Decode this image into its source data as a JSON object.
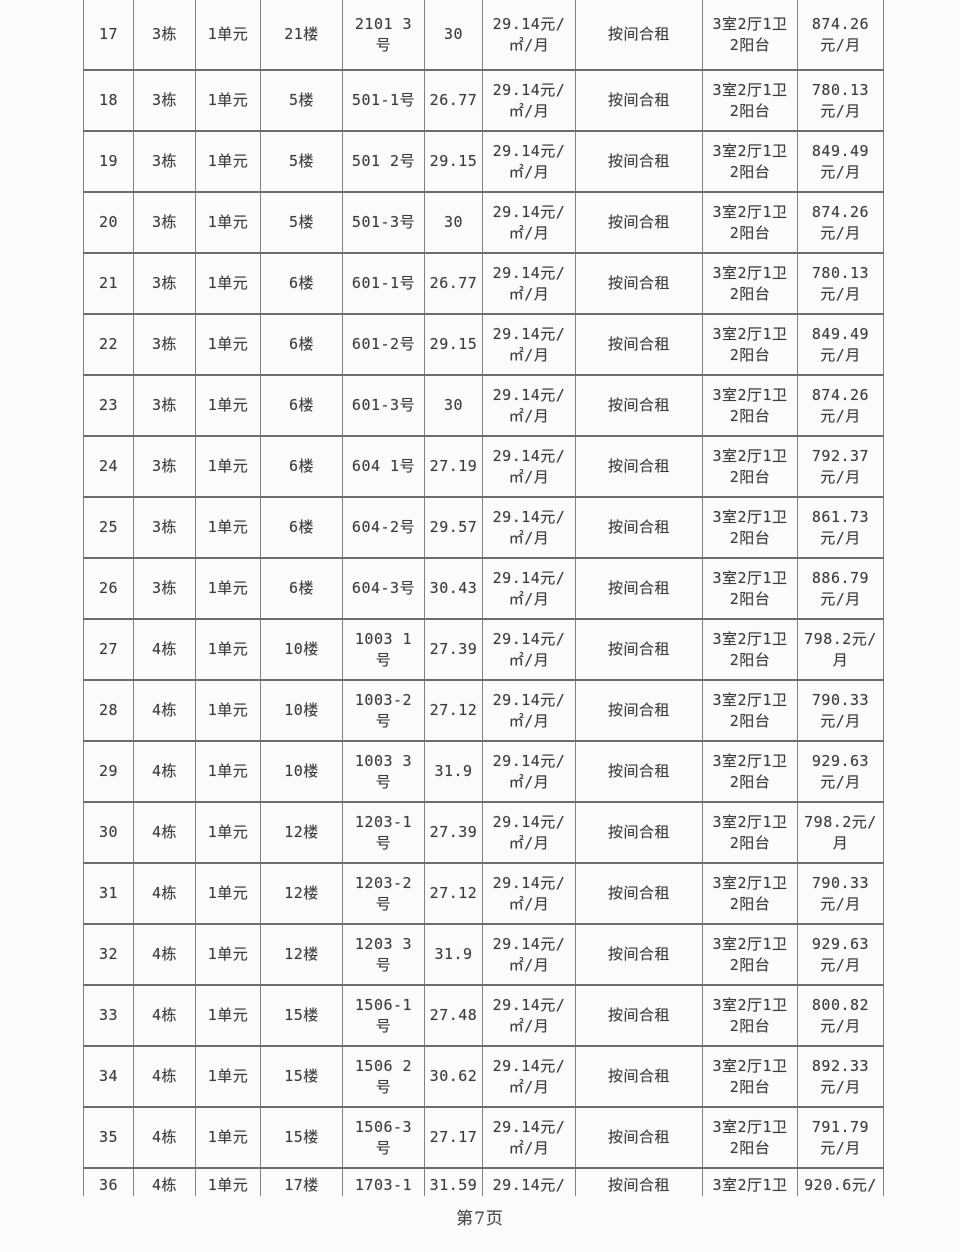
{
  "document": {
    "page_footer": "第7页"
  },
  "table": {
    "rows": [
      [
        "17",
        "3栋",
        "1单元",
        "21楼",
        "2101 3\n号",
        "30",
        "29.14元/\n㎡/月",
        "按间合租",
        "3室2厅1卫\n2阳台",
        "874.26\n元/月"
      ],
      [
        "18",
        "3栋",
        "1单元",
        "5楼",
        "501-1号",
        "26.77",
        "29.14元/\n㎡/月",
        "按间合租",
        "3室2厅1卫\n2阳台",
        "780.13\n元/月"
      ],
      [
        "19",
        "3栋",
        "1单元",
        "5楼",
        "501 2号",
        "29.15",
        "29.14元/\n㎡/月",
        "按间合租",
        "3室2厅1卫\n2阳台",
        "849.49\n元/月"
      ],
      [
        "20",
        "3栋",
        "1单元",
        "5楼",
        "501-3号",
        "30",
        "29.14元/\n㎡/月",
        "按间合租",
        "3室2厅1卫\n2阳台",
        "874.26\n元/月"
      ],
      [
        "21",
        "3栋",
        "1单元",
        "6楼",
        "601-1号",
        "26.77",
        "29.14元/\n㎡/月",
        "按间合租",
        "3室2厅1卫\n2阳台",
        "780.13\n元/月"
      ],
      [
        "22",
        "3栋",
        "1单元",
        "6楼",
        "601-2号",
        "29.15",
        "29.14元/\n㎡/月",
        "按间合租",
        "3室2厅1卫\n2阳台",
        "849.49\n元/月"
      ],
      [
        "23",
        "3栋",
        "1单元",
        "6楼",
        "601-3号",
        "30",
        "29.14元/\n㎡/月",
        "按间合租",
        "3室2厅1卫\n2阳台",
        "874.26\n元/月"
      ],
      [
        "24",
        "3栋",
        "1单元",
        "6楼",
        "604 1号",
        "27.19",
        "29.14元/\n㎡/月",
        "按间合租",
        "3室2厅1卫\n2阳台",
        "792.37\n元/月"
      ],
      [
        "25",
        "3栋",
        "1单元",
        "6楼",
        "604-2号",
        "29.57",
        "29.14元/\n㎡/月",
        "按间合租",
        "3室2厅1卫\n2阳台",
        "861.73\n元/月"
      ],
      [
        "26",
        "3栋",
        "1单元",
        "6楼",
        "604-3号",
        "30.43",
        "29.14元/\n㎡/月",
        "按间合租",
        "3室2厅1卫\n2阳台",
        "886.79\n元/月"
      ],
      [
        "27",
        "4栋",
        "1单元",
        "10楼",
        "1003 1\n号",
        "27.39",
        "29.14元/\n㎡/月",
        "按间合租",
        "3室2厅1卫\n2阳台",
        "798.2元/\n月"
      ],
      [
        "28",
        "4栋",
        "1单元",
        "10楼",
        "1003-2\n号",
        "27.12",
        "29.14元/\n㎡/月",
        "按间合租",
        "3室2厅1卫\n2阳台",
        "790.33\n元/月"
      ],
      [
        "29",
        "4栋",
        "1单元",
        "10楼",
        "1003 3\n号",
        "31.9",
        "29.14元/\n㎡/月",
        "按间合租",
        "3室2厅1卫\n2阳台",
        "929.63\n元/月"
      ],
      [
        "30",
        "4栋",
        "1单元",
        "12楼",
        "1203-1\n号",
        "27.39",
        "29.14元/\n㎡/月",
        "按间合租",
        "3室2厅1卫\n2阳台",
        "798.2元/\n月"
      ],
      [
        "31",
        "4栋",
        "1单元",
        "12楼",
        "1203-2\n号",
        "27.12",
        "29.14元/\n㎡/月",
        "按间合租",
        "3室2厅1卫\n2阳台",
        "790.33\n元/月"
      ],
      [
        "32",
        "4栋",
        "1单元",
        "12楼",
        "1203 3\n号",
        "31.9",
        "29.14元/\n㎡/月",
        "按间合租",
        "3室2厅1卫\n2阳台",
        "929.63\n元/月"
      ],
      [
        "33",
        "4栋",
        "1单元",
        "15楼",
        "1506-1\n号",
        "27.48",
        "29.14元/\n㎡/月",
        "按间合租",
        "3室2厅1卫\n2阳台",
        "800.82\n元/月"
      ],
      [
        "34",
        "4栋",
        "1单元",
        "15楼",
        "1506 2\n号",
        "30.62",
        "29.14元/\n㎡/月",
        "按间合租",
        "3室2厅1卫\n2阳台",
        "892.33\n元/月"
      ],
      [
        "35",
        "4栋",
        "1单元",
        "15楼",
        "1506-3\n号",
        "27.17",
        "29.14元/\n㎡/月",
        "按间合租",
        "3室2厅1卫\n2阳台",
        "791.79\n元/月"
      ],
      [
        "36",
        "4栋",
        "1单元",
        "17楼",
        "1703-1",
        "31.59",
        "29.14元/",
        "按间合租",
        "3室2厅1卫",
        "920.6元/"
      ]
    ]
  }
}
